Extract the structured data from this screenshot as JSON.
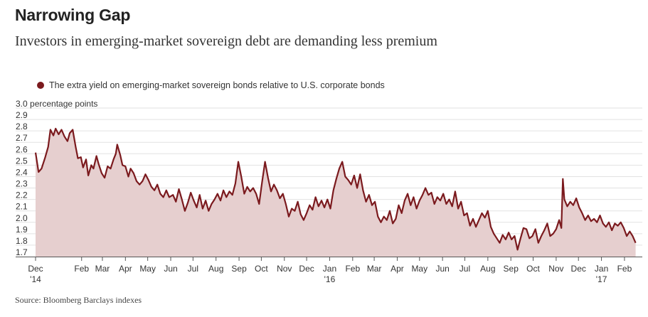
{
  "title": "Narrowing Gap",
  "subtitle": "Investors in emerging-market sovereign debt are demanding less premium",
  "source": "Source: Bloomberg Barclays indexes",
  "colors": {
    "line": "#7b1a1e",
    "fill": "#e6cfcf",
    "grid": "#e2e2e2",
    "axis": "#555555"
  },
  "chart_data": {
    "type": "area",
    "legend": [
      "The extra yield on emerging-market sovereign bonds relative to U.S. corporate bonds"
    ],
    "ylabel_unit": "percentage points",
    "ylim": [
      1.7,
      3.0
    ],
    "y_ticks": [
      {
        "value": 3.0,
        "label": "3.0 percentage points"
      },
      {
        "value": 2.9,
        "label": "2.9"
      },
      {
        "value": 2.8,
        "label": "2.8"
      },
      {
        "value": 2.7,
        "label": "2.7"
      },
      {
        "value": 2.6,
        "label": "2.6"
      },
      {
        "value": 2.5,
        "label": "2.5"
      },
      {
        "value": 2.4,
        "label": "2.4"
      },
      {
        "value": 2.3,
        "label": "2.3"
      },
      {
        "value": 2.2,
        "label": "2.2"
      },
      {
        "value": 2.1,
        "label": "2.1"
      },
      {
        "value": 2.0,
        "label": "2.0"
      },
      {
        "value": 1.9,
        "label": "1.9"
      },
      {
        "value": 1.8,
        "label": "1.8"
      },
      {
        "value": 1.7,
        "label": "1.7"
      }
    ],
    "x_range": [
      "2014-12-01",
      "2017-02-25"
    ],
    "x_ticks": [
      {
        "date": "2014-12-01",
        "label": "Dec",
        "sublabel": "'14"
      },
      {
        "date": "2015-02-01",
        "label": "Feb"
      },
      {
        "date": "2015-03-01",
        "label": "Mar"
      },
      {
        "date": "2015-04-01",
        "label": "Apr"
      },
      {
        "date": "2015-05-01",
        "label": "May"
      },
      {
        "date": "2015-06-01",
        "label": "Jun"
      },
      {
        "date": "2015-07-01",
        "label": "Jul"
      },
      {
        "date": "2015-08-01",
        "label": "Aug"
      },
      {
        "date": "2015-09-01",
        "label": "Sep"
      },
      {
        "date": "2015-10-01",
        "label": "Oct"
      },
      {
        "date": "2015-11-01",
        "label": "Nov"
      },
      {
        "date": "2015-12-01",
        "label": "Dec"
      },
      {
        "date": "2016-01-01",
        "label": "Jan",
        "sublabel": "'16"
      },
      {
        "date": "2016-02-01",
        "label": "Feb"
      },
      {
        "date": "2016-03-01",
        "label": "Mar"
      },
      {
        "date": "2016-04-01",
        "label": "Apr"
      },
      {
        "date": "2016-05-01",
        "label": "May"
      },
      {
        "date": "2016-06-01",
        "label": "Jun"
      },
      {
        "date": "2016-07-01",
        "label": "Jul"
      },
      {
        "date": "2016-08-01",
        "label": "Aug"
      },
      {
        "date": "2016-09-01",
        "label": "Sep"
      },
      {
        "date": "2016-10-01",
        "label": "Oct"
      },
      {
        "date": "2016-11-01",
        "label": "Nov"
      },
      {
        "date": "2016-12-01",
        "label": "Dec"
      },
      {
        "date": "2017-01-01",
        "label": "Jan",
        "sublabel": "'17"
      },
      {
        "date": "2017-02-01",
        "label": "Feb"
      }
    ],
    "series": [
      {
        "points": [
          [
            "2014-12-01",
            2.61
          ],
          [
            "2014-12-05",
            2.44
          ],
          [
            "2014-12-09",
            2.47
          ],
          [
            "2014-12-14",
            2.57
          ],
          [
            "2014-12-18",
            2.66
          ],
          [
            "2014-12-21",
            2.81
          ],
          [
            "2014-12-25",
            2.76
          ],
          [
            "2014-12-28",
            2.82
          ],
          [
            "2015-01-01",
            2.77
          ],
          [
            "2015-01-05",
            2.81
          ],
          [
            "2015-01-09",
            2.75
          ],
          [
            "2015-01-13",
            2.71
          ],
          [
            "2015-01-16",
            2.78
          ],
          [
            "2015-01-20",
            2.81
          ],
          [
            "2015-01-24",
            2.66
          ],
          [
            "2015-01-27",
            2.56
          ],
          [
            "2015-01-31",
            2.57
          ],
          [
            "2015-02-03",
            2.48
          ],
          [
            "2015-02-07",
            2.55
          ],
          [
            "2015-02-10",
            2.41
          ],
          [
            "2015-02-14",
            2.5
          ],
          [
            "2015-02-17",
            2.47
          ],
          [
            "2015-02-21",
            2.58
          ],
          [
            "2015-02-24",
            2.51
          ],
          [
            "2015-02-28",
            2.43
          ],
          [
            "2015-03-04",
            2.39
          ],
          [
            "2015-03-08",
            2.49
          ],
          [
            "2015-03-12",
            2.47
          ],
          [
            "2015-03-16",
            2.55
          ],
          [
            "2015-03-19",
            2.6
          ],
          [
            "2015-03-21",
            2.68
          ],
          [
            "2015-03-25",
            2.59
          ],
          [
            "2015-03-28",
            2.5
          ],
          [
            "2015-04-01",
            2.49
          ],
          [
            "2015-04-05",
            2.4
          ],
          [
            "2015-04-08",
            2.47
          ],
          [
            "2015-04-12",
            2.43
          ],
          [
            "2015-04-16",
            2.36
          ],
          [
            "2015-04-20",
            2.33
          ],
          [
            "2015-04-24",
            2.36
          ],
          [
            "2015-04-28",
            2.42
          ],
          [
            "2015-05-02",
            2.37
          ],
          [
            "2015-05-06",
            2.31
          ],
          [
            "2015-05-10",
            2.28
          ],
          [
            "2015-05-14",
            2.33
          ],
          [
            "2015-05-18",
            2.25
          ],
          [
            "2015-05-22",
            2.22
          ],
          [
            "2015-05-26",
            2.28
          ],
          [
            "2015-05-30",
            2.22
          ],
          [
            "2015-06-04",
            2.24
          ],
          [
            "2015-06-08",
            2.18
          ],
          [
            "2015-06-12",
            2.29
          ],
          [
            "2015-06-16",
            2.2
          ],
          [
            "2015-06-20",
            2.1
          ],
          [
            "2015-06-24",
            2.17
          ],
          [
            "2015-06-28",
            2.26
          ],
          [
            "2015-07-02",
            2.19
          ],
          [
            "2015-07-06",
            2.13
          ],
          [
            "2015-07-10",
            2.24
          ],
          [
            "2015-07-14",
            2.12
          ],
          [
            "2015-07-18",
            2.19
          ],
          [
            "2015-07-22",
            2.1
          ],
          [
            "2015-07-26",
            2.16
          ],
          [
            "2015-07-30",
            2.2
          ],
          [
            "2015-08-03",
            2.25
          ],
          [
            "2015-08-07",
            2.19
          ],
          [
            "2015-08-11",
            2.28
          ],
          [
            "2015-08-15",
            2.22
          ],
          [
            "2015-08-19",
            2.27
          ],
          [
            "2015-08-23",
            2.24
          ],
          [
            "2015-08-27",
            2.34
          ],
          [
            "2015-08-31",
            2.53
          ],
          [
            "2015-09-04",
            2.4
          ],
          [
            "2015-09-08",
            2.25
          ],
          [
            "2015-09-12",
            2.31
          ],
          [
            "2015-09-16",
            2.27
          ],
          [
            "2015-09-20",
            2.3
          ],
          [
            "2015-09-24",
            2.25
          ],
          [
            "2015-09-28",
            2.16
          ],
          [
            "2015-10-02",
            2.35
          ],
          [
            "2015-10-06",
            2.53
          ],
          [
            "2015-10-10",
            2.39
          ],
          [
            "2015-10-14",
            2.27
          ],
          [
            "2015-10-18",
            2.33
          ],
          [
            "2015-10-22",
            2.28
          ],
          [
            "2015-10-26",
            2.21
          ],
          [
            "2015-10-30",
            2.25
          ],
          [
            "2015-11-03",
            2.16
          ],
          [
            "2015-11-07",
            2.05
          ],
          [
            "2015-11-11",
            2.12
          ],
          [
            "2015-11-15",
            2.1
          ],
          [
            "2015-11-19",
            2.18
          ],
          [
            "2015-11-23",
            2.07
          ],
          [
            "2015-11-27",
            2.02
          ],
          [
            "2015-12-01",
            2.08
          ],
          [
            "2015-12-05",
            2.15
          ],
          [
            "2015-12-09",
            2.11
          ],
          [
            "2015-12-13",
            2.22
          ],
          [
            "2015-12-17",
            2.14
          ],
          [
            "2015-12-21",
            2.19
          ],
          [
            "2015-12-25",
            2.13
          ],
          [
            "2015-12-29",
            2.2
          ],
          [
            "2016-01-02",
            2.12
          ],
          [
            "2016-01-06",
            2.28
          ],
          [
            "2016-01-10",
            2.38
          ],
          [
            "2016-01-14",
            2.47
          ],
          [
            "2016-01-18",
            2.53
          ],
          [
            "2016-01-22",
            2.4
          ],
          [
            "2016-01-26",
            2.37
          ],
          [
            "2016-01-30",
            2.33
          ],
          [
            "2016-02-03",
            2.41
          ],
          [
            "2016-02-07",
            2.3
          ],
          [
            "2016-02-11",
            2.42
          ],
          [
            "2016-02-15",
            2.28
          ],
          [
            "2016-02-19",
            2.18
          ],
          [
            "2016-02-23",
            2.24
          ],
          [
            "2016-02-27",
            2.15
          ],
          [
            "2016-03-02",
            2.18
          ],
          [
            "2016-03-06",
            2.05
          ],
          [
            "2016-03-10",
            2.0
          ],
          [
            "2016-03-14",
            2.05
          ],
          [
            "2016-03-18",
            2.02
          ],
          [
            "2016-03-22",
            2.1
          ],
          [
            "2016-03-26",
            1.99
          ],
          [
            "2016-03-30",
            2.03
          ],
          [
            "2016-04-03",
            2.15
          ],
          [
            "2016-04-07",
            2.08
          ],
          [
            "2016-04-11",
            2.19
          ],
          [
            "2016-04-15",
            2.25
          ],
          [
            "2016-04-19",
            2.15
          ],
          [
            "2016-04-23",
            2.22
          ],
          [
            "2016-04-27",
            2.12
          ],
          [
            "2016-05-01",
            2.19
          ],
          [
            "2016-05-05",
            2.24
          ],
          [
            "2016-05-09",
            2.3
          ],
          [
            "2016-05-13",
            2.24
          ],
          [
            "2016-05-17",
            2.26
          ],
          [
            "2016-05-21",
            2.16
          ],
          [
            "2016-05-25",
            2.22
          ],
          [
            "2016-05-29",
            2.19
          ],
          [
            "2016-06-02",
            2.25
          ],
          [
            "2016-06-06",
            2.16
          ],
          [
            "2016-06-10",
            2.2
          ],
          [
            "2016-06-14",
            2.14
          ],
          [
            "2016-06-18",
            2.27
          ],
          [
            "2016-06-22",
            2.12
          ],
          [
            "2016-06-26",
            2.18
          ],
          [
            "2016-06-30",
            2.06
          ],
          [
            "2016-07-04",
            2.08
          ],
          [
            "2016-07-08",
            1.97
          ],
          [
            "2016-07-12",
            2.03
          ],
          [
            "2016-07-16",
            1.96
          ],
          [
            "2016-07-20",
            2.02
          ],
          [
            "2016-07-24",
            2.08
          ],
          [
            "2016-07-28",
            2.04
          ],
          [
            "2016-08-01",
            2.1
          ],
          [
            "2016-08-05",
            1.96
          ],
          [
            "2016-08-09",
            1.9
          ],
          [
            "2016-08-13",
            1.86
          ],
          [
            "2016-08-17",
            1.82
          ],
          [
            "2016-08-21",
            1.89
          ],
          [
            "2016-08-25",
            1.85
          ],
          [
            "2016-08-29",
            1.91
          ],
          [
            "2016-09-02",
            1.85
          ],
          [
            "2016-09-06",
            1.88
          ],
          [
            "2016-09-10",
            1.76
          ],
          [
            "2016-09-14",
            1.86
          ],
          [
            "2016-09-18",
            1.95
          ],
          [
            "2016-09-22",
            1.94
          ],
          [
            "2016-09-26",
            1.86
          ],
          [
            "2016-09-30",
            1.88
          ],
          [
            "2016-10-04",
            1.94
          ],
          [
            "2016-10-08",
            1.82
          ],
          [
            "2016-10-12",
            1.88
          ],
          [
            "2016-10-16",
            1.93
          ],
          [
            "2016-10-20",
            1.99
          ],
          [
            "2016-10-24",
            1.88
          ],
          [
            "2016-10-28",
            1.9
          ],
          [
            "2016-11-01",
            1.94
          ],
          [
            "2016-11-05",
            2.02
          ],
          [
            "2016-11-08",
            1.95
          ],
          [
            "2016-11-10",
            2.38
          ],
          [
            "2016-11-12",
            2.2
          ],
          [
            "2016-11-16",
            2.14
          ],
          [
            "2016-11-20",
            2.18
          ],
          [
            "2016-11-24",
            2.15
          ],
          [
            "2016-11-28",
            2.21
          ],
          [
            "2016-12-02",
            2.13
          ],
          [
            "2016-12-06",
            2.08
          ],
          [
            "2016-12-10",
            2.02
          ],
          [
            "2016-12-14",
            2.06
          ],
          [
            "2016-12-18",
            2.01
          ],
          [
            "2016-12-22",
            2.03
          ],
          [
            "2016-12-26",
            2.0
          ],
          [
            "2016-12-30",
            2.06
          ],
          [
            "2017-01-03",
            1.99
          ],
          [
            "2017-01-07",
            1.96
          ],
          [
            "2017-01-11",
            2.0
          ],
          [
            "2017-01-15",
            1.93
          ],
          [
            "2017-01-19",
            1.99
          ],
          [
            "2017-01-23",
            1.97
          ],
          [
            "2017-01-27",
            2.0
          ],
          [
            "2017-01-31",
            1.95
          ],
          [
            "2017-02-04",
            1.88
          ],
          [
            "2017-02-08",
            1.92
          ],
          [
            "2017-02-12",
            1.88
          ],
          [
            "2017-02-16",
            1.82
          ]
        ]
      }
    ]
  }
}
